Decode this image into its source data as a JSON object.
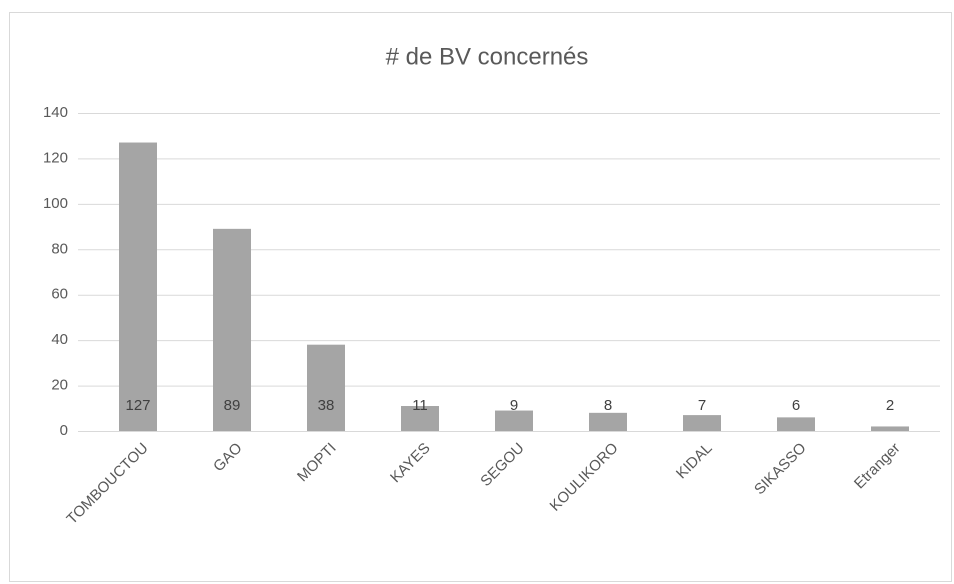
{
  "chart_data": {
    "type": "bar",
    "title": "# de BV concernés",
    "categories": [
      "TOMBOUCTOU",
      "GAO",
      "MOPTI",
      "KAYES",
      "SEGOU",
      "KOULIKORO",
      "KIDAL",
      "SIKASSO",
      "Etranger"
    ],
    "values": [
      127,
      89,
      38,
      11,
      9,
      8,
      7,
      6,
      2
    ],
    "color": "#a5a5a5",
    "ylim": [
      0,
      140
    ],
    "yticks": [
      0,
      20,
      40,
      60,
      80,
      100,
      120,
      140
    ],
    "grid": true
  }
}
